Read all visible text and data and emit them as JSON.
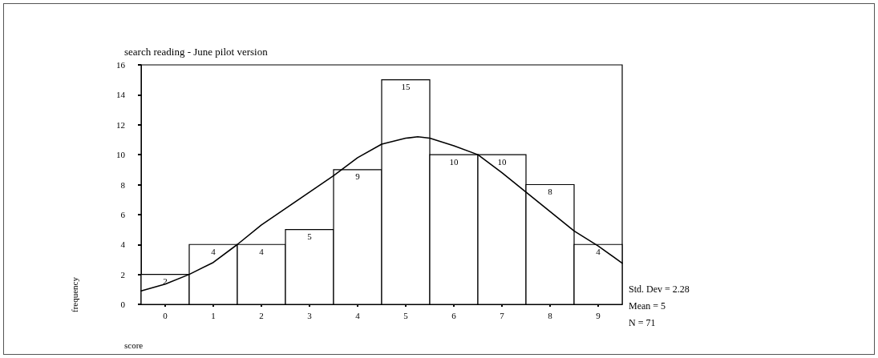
{
  "chart_data": {
    "type": "histogram",
    "title": "search reading - June pilot version",
    "xlabel": "score",
    "ylabel": "frequency",
    "bins": [
      -0.5,
      0.5,
      1.5,
      2.5,
      3.5,
      4.5,
      5.5,
      6.5,
      7.5,
      8.5,
      9.5
    ],
    "values": [
      2,
      4,
      4,
      5,
      9,
      15,
      10,
      10,
      8,
      4
    ],
    "color": "#ffffff",
    "value_labels": [
      "2",
      "4",
      "4",
      "5",
      "9",
      "15",
      "10",
      "10",
      "8",
      "4"
    ],
    "series": [
      {
        "type": "line",
        "color": "#000000",
        "x": [
          -0.5,
          0,
          0.5,
          1,
          1.5,
          2,
          2.5,
          3,
          3.5,
          4,
          4.5,
          5,
          5.25,
          5.5,
          6,
          6.5,
          7,
          7.5,
          8,
          8.5,
          9,
          9.5
        ],
        "values": [
          0.9,
          1.35,
          2.0,
          2.8,
          4.0,
          5.3,
          6.4,
          7.5,
          8.6,
          9.8,
          10.7,
          11.1,
          11.2,
          11.1,
          10.6,
          10.0,
          8.8,
          7.5,
          6.2,
          4.9,
          3.9,
          2.75
        ]
      }
    ],
    "xlim": [
      -0.5,
      9.5
    ],
    "xticks": [
      0,
      1,
      2,
      3,
      4,
      5,
      6,
      7,
      8,
      9
    ],
    "ylim": [
      0,
      16
    ],
    "yticks": [
      0,
      2,
      4,
      6,
      8,
      10,
      12,
      14,
      16
    ],
    "grid": false,
    "annotations": [
      "Std. Dev = 2.28",
      "Mean = 5",
      "N = 71"
    ]
  }
}
